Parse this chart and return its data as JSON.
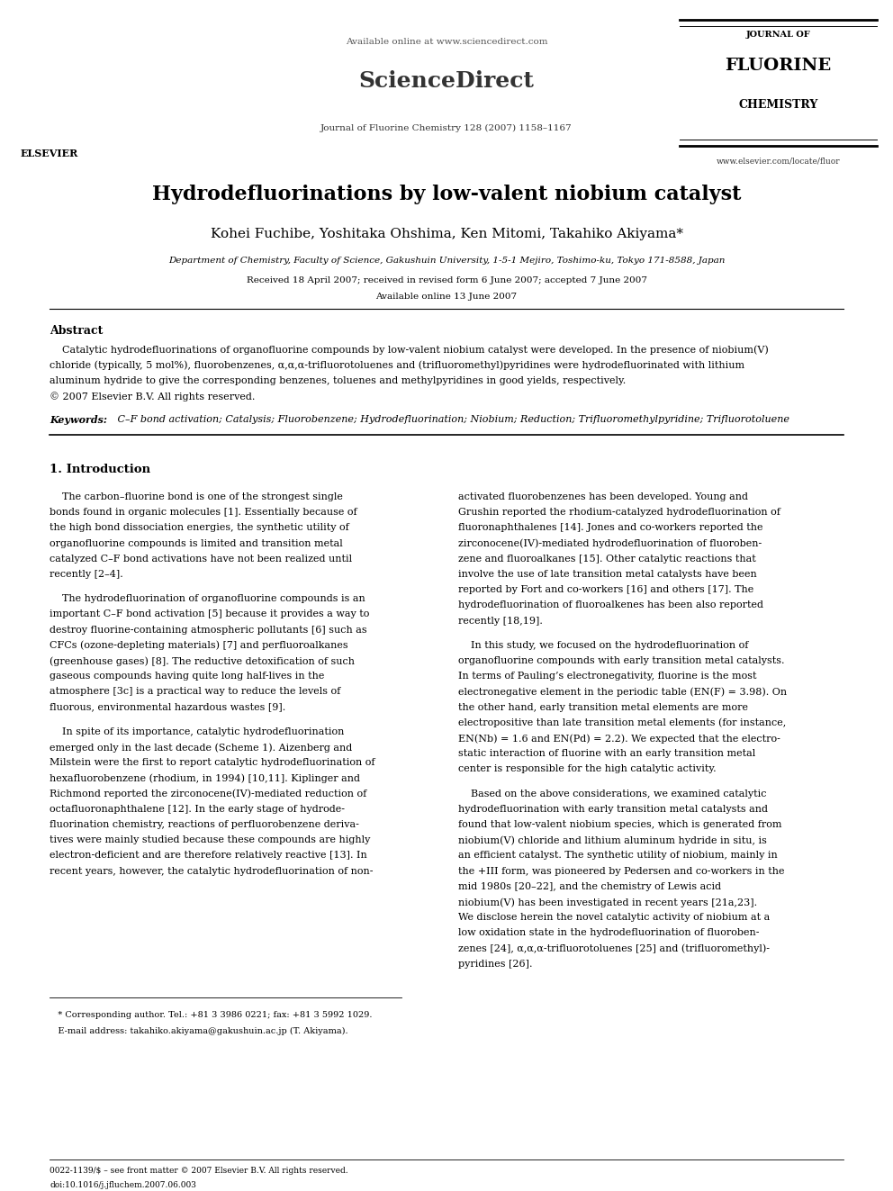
{
  "background_color": "#ffffff",
  "page_width": 9.92,
  "page_height": 13.23,
  "header": {
    "available_online": "Available online at www.sciencedirect.com",
    "journal_info": "Journal of Fluorine Chemistry 128 (2007) 1158–1167",
    "elsevier_text": "ELSEVIER",
    "sciencedirect_text": "ScienceDirect",
    "journal_name_line1": "JOURNAL OF",
    "journal_name_line2": "FLUORINE",
    "journal_name_line3": "CHEMISTRY",
    "journal_url": "www.elsevier.com/locate/fluor"
  },
  "title": "Hydrodefluorinations by low-valent niobium catalyst",
  "authors": "Kohei Fuchibe, Yoshitaka Ohshima, Ken Mitomi, Takahiko Akiyama",
  "affiliation": "Department of Chemistry, Faculty of Science, Gakushuin University, 1-5-1 Mejiro, Toshimo-ku, Tokyo 171-8588, Japan",
  "dates": "Received 18 April 2007; received in revised form 6 June 2007; accepted 7 June 2007",
  "available_online_date": "Available online 13 June 2007",
  "abstract_title": "Abstract",
  "abstract_lines": [
    "    Catalytic hydrodefluorinations of organofluorine compounds by low-valent niobium catalyst were developed. In the presence of niobium(V)",
    "chloride (typically, 5 mol%), fluorobenzenes, α,α,α-trifluorotoluenes and (trifluoromethyl)pyridines were hydrodefluorinated with lithium",
    "aluminum hydride to give the corresponding benzenes, toluenes and methylpyridines in good yields, respectively.",
    "© 2007 Elsevier B.V. All rights reserved."
  ],
  "keywords_label": "Keywords:",
  "keywords": " C–F bond activation; Catalysis; Fluorobenzene; Hydrodefluorination; Niobium; Reduction; Trifluoromethylpyridine; Trifluorotoluene",
  "section1_title": "1. Introduction",
  "col1_paragraphs": [
    [
      "    The carbon–fluorine bond is one of the strongest single",
      "bonds found in organic molecules [1]. Essentially because of",
      "the high bond dissociation energies, the synthetic utility of",
      "organofluorine compounds is limited and transition metal",
      "catalyzed C–F bond activations have not been realized until",
      "recently [2–4]."
    ],
    [
      "    The hydrodefluorination of organofluorine compounds is an",
      "important C–F bond activation [5] because it provides a way to",
      "destroy fluorine-containing atmospheric pollutants [6] such as",
      "CFCs (ozone-depleting materials) [7] and perfluoroalkanes",
      "(greenhouse gases) [8]. The reductive detoxification of such",
      "gaseous compounds having quite long half-lives in the",
      "atmosphere [3c] is a practical way to reduce the levels of",
      "fluorous, environmental hazardous wastes [9]."
    ],
    [
      "    In spite of its importance, catalytic hydrodefluorination",
      "emerged only in the last decade (Scheme 1). Aizenberg and",
      "Milstein were the first to report catalytic hydrodefluorination of",
      "hexafluorobenzene (rhodium, in 1994) [10,11]. Kiplinger and",
      "Richmond reported the zirconocene(IV)-mediated reduction of",
      "octafluoronaphthalene [12]. In the early stage of hydrode-",
      "fluorination chemistry, reactions of perfluorobenzene deriva-",
      "tives were mainly studied because these compounds are highly",
      "electron-deficient and are therefore relatively reactive [13]. In",
      "recent years, however, the catalytic hydrodefluorination of non-"
    ]
  ],
  "col2_paragraphs": [
    [
      "activated fluorobenzenes has been developed. Young and",
      "Grushin reported the rhodium-catalyzed hydrodefluorination of",
      "fluoronaphthalenes [14]. Jones and co-workers reported the",
      "zirconocene(IV)-mediated hydrodefluorination of fluoroben-",
      "zene and fluoroalkanes [15]. Other catalytic reactions that",
      "involve the use of late transition metal catalysts have been",
      "reported by Fort and co-workers [16] and others [17]. The",
      "hydrodefluorination of fluoroalkenes has been also reported",
      "recently [18,19]."
    ],
    [
      "    In this study, we focused on the hydrodefluorination of",
      "organofluorine compounds with early transition metal catalysts.",
      "In terms of Pauling’s electronegativity, fluorine is the most",
      "electronegative element in the periodic table (EN(F) = 3.98). On",
      "the other hand, early transition metal elements are more",
      "electropositive than late transition metal elements (for instance,",
      "EN(Nb) = 1.6 and EN(Pd) = 2.2). We expected that the electro-",
      "static interaction of fluorine with an early transition metal",
      "center is responsible for the high catalytic activity."
    ],
    [
      "    Based on the above considerations, we examined catalytic",
      "hydrodefluorination with early transition metal catalysts and",
      "found that low-valent niobium species, which is generated from",
      "niobium(V) chloride and lithium aluminum hydride in situ, is",
      "an efficient catalyst. The synthetic utility of niobium, mainly in",
      "the +III form, was pioneered by Pedersen and co-workers in the",
      "mid 1980s [20–22], and the chemistry of Lewis acid",
      "niobium(V) has been investigated in recent years [21a,23].",
      "We disclose herein the novel catalytic activity of niobium at a",
      "low oxidation state in the hydrodefluorination of fluoroben-",
      "zenes [24], α,α,α-trifluorotoluenes [25] and (trifluoromethyl)-",
      "pyridines [26]."
    ]
  ],
  "footnote1": "   * Corresponding author. Tel.: +81 3 3986 0221; fax: +81 3 5992 1029.",
  "footnote2": "   E-mail address: takahiko.akiyama@gakushuin.ac.jp (T. Akiyama).",
  "footer_issn": "0022-1139/$ – see front matter © 2007 Elsevier B.V. All rights reserved.",
  "footer_doi": "doi:10.1016/j.jfluchem.2007.06.003"
}
